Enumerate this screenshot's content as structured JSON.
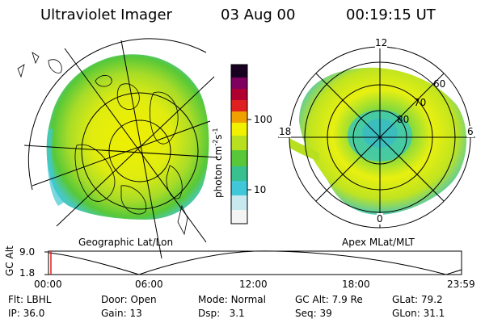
{
  "header": {
    "instrument": "Ultraviolet Imager",
    "date": "03 Aug 00",
    "time": "00:19:15 UT"
  },
  "colorbar": {
    "unit_label": "photon cm",
    "unit_sup1": "-2",
    "unit_mid": "s",
    "unit_sup2": "-1",
    "tick_100": "100",
    "tick_10": "10",
    "colors": [
      "#f4f4f4",
      "#c8e8f0",
      "#40c8d8",
      "#38c090",
      "#58c838",
      "#b8e020",
      "#f0f000",
      "#f0a000",
      "#e02020",
      "#b00030",
      "#800060",
      "#180020"
    ]
  },
  "left_map": {
    "caption": "Geographic Lat/Lon"
  },
  "right_map": {
    "caption": "Apex MLat/MLT",
    "mlt_12": "12",
    "mlt_18": "18",
    "mlt_6": "6",
    "mlt_0": "0",
    "lat_60": "60",
    "lat_70": "70",
    "lat_80": "80"
  },
  "altitude_plot": {
    "ylabel": "GC Alt",
    "y_max": "9.0",
    "y_min": "1.8",
    "x_ticks": [
      "00:00",
      "06:00",
      "12:00",
      "18:00",
      "23:59"
    ]
  },
  "info": {
    "filter_label": "Flt:",
    "filter_value": "LBHL",
    "ip_label": "IP:",
    "ip_value": "36.0",
    "door_label": "Door:",
    "door_value": "Open",
    "gain_label": "Gain:",
    "gain_value": "13",
    "mode_label": "Mode:",
    "mode_value": "Normal",
    "dsp_label": "Dsp:",
    "dsp_value": "3.1",
    "gcalt_label": "GC Alt:",
    "gcalt_value": "7.9 Re",
    "seq_label": "Seq:",
    "seq_value": "39",
    "glat_label": "GLat:",
    "glat_value": "79.2",
    "glon_label": "GLon:",
    "glon_value": "31.1"
  }
}
